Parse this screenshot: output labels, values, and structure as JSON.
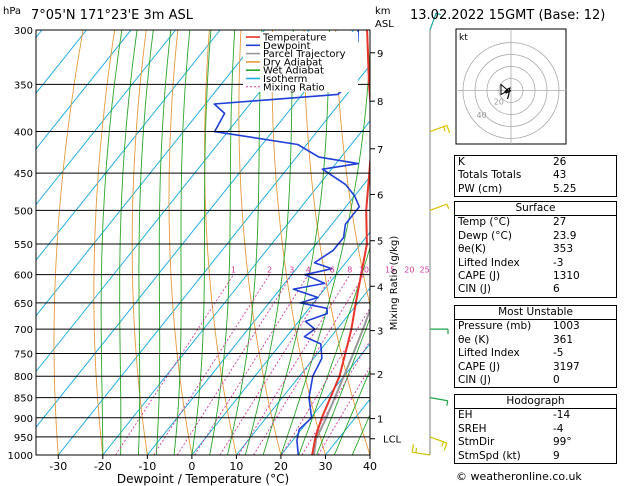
{
  "header": {
    "p_unit": "hPa",
    "location": "7°05'N  171°23'E  3m  ASL",
    "km_unit": "km",
    "asl_unit": "ASL",
    "datetime": "13.02.2022  15GMT  (Base: 12)"
  },
  "chart_data": {
    "type": "skew-t",
    "xlabel": "Dewpoint / Temperature (°C)",
    "ylabel_right": "Mixing Ratio (g/kg)",
    "pressure_ticks": [
      300,
      350,
      400,
      450,
      500,
      550,
      600,
      650,
      700,
      750,
      800,
      850,
      900,
      950,
      1000
    ],
    "temperature_ticks": [
      -30,
      -20,
      -10,
      0,
      10,
      20,
      30,
      40
    ],
    "xlim": [
      -35,
      40
    ],
    "ylim_hpa": [
      1000,
      300
    ],
    "skew": 0.8,
    "km_ticks": [
      {
        "label": "1",
        "p": 902
      },
      {
        "label": "2",
        "p": 795
      },
      {
        "label": "3",
        "p": 703
      },
      {
        "label": "4",
        "p": 620
      },
      {
        "label": "5",
        "p": 545
      },
      {
        "label": "6",
        "p": 478
      },
      {
        "label": "7",
        "p": 420
      },
      {
        "label": "8",
        "p": 367
      },
      {
        "label": "9",
        "p": 320
      }
    ],
    "lcl": {
      "label": "LCL",
      "p": 955
    },
    "mixing_ratio_labels": [
      "1",
      "2",
      "3",
      "4",
      "6",
      "8",
      "10",
      "15",
      "20",
      "25"
    ],
    "mixing_ratio_values": [
      1,
      2,
      3,
      4,
      6,
      8,
      10,
      15,
      20,
      25
    ],
    "legend": [
      {
        "name": "Temperature",
        "color": "#e8342a"
      },
      {
        "name": "Dewpoint",
        "color": "#1f3fd8"
      },
      {
        "name": "Parcel Trajectory",
        "color": "#999999"
      },
      {
        "name": "Dry Adiabat",
        "color": "#e59a3a"
      },
      {
        "name": "Wet Adiabat",
        "color": "#2aa52a"
      },
      {
        "name": "Isotherm",
        "color": "#24aee0"
      },
      {
        "name": "Mixing Ratio",
        "color": "#d23a9c"
      }
    ],
    "temperature": [
      {
        "p": 1000,
        "t": 27
      },
      {
        "p": 950,
        "t": 24.5
      },
      {
        "p": 900,
        "t": 22.5
      },
      {
        "p": 850,
        "t": 20.8
      },
      {
        "p": 800,
        "t": 19
      },
      {
        "p": 750,
        "t": 16.2
      },
      {
        "p": 700,
        "t": 13.2
      },
      {
        "p": 650,
        "t": 9.5
      },
      {
        "p": 600,
        "t": 5.6
      },
      {
        "p": 550,
        "t": 1.4
      },
      {
        "p": 500,
        "t": -4.8
      },
      {
        "p": 450,
        "t": -10.8
      },
      {
        "p": 400,
        "t": -17.5
      },
      {
        "p": 350,
        "t": -26.8
      },
      {
        "p": 300,
        "t": -37
      }
    ],
    "dewpoint": [
      {
        "p": 1000,
        "t": 23.9
      },
      {
        "p": 960,
        "t": 21
      },
      {
        "p": 930,
        "t": 19.5
      },
      {
        "p": 900,
        "t": 20.2
      },
      {
        "p": 850,
        "t": 16
      },
      {
        "p": 800,
        "t": 13
      },
      {
        "p": 760,
        "t": 11.8
      },
      {
        "p": 730,
        "t": 9
      },
      {
        "p": 715,
        "t": 4
      },
      {
        "p": 700,
        "t": 5
      },
      {
        "p": 685,
        "t": 1.5
      },
      {
        "p": 670,
        "t": 5
      },
      {
        "p": 660,
        "t": 4
      },
      {
        "p": 650,
        "t": -3
      },
      {
        "p": 640,
        "t": 0
      },
      {
        "p": 625,
        "t": -7
      },
      {
        "p": 615,
        "t": -1
      },
      {
        "p": 600,
        "t": -7
      },
      {
        "p": 590,
        "t": -2
      },
      {
        "p": 580,
        "t": -7
      },
      {
        "p": 560,
        "t": -5
      },
      {
        "p": 540,
        "t": -5
      },
      {
        "p": 520,
        "t": -7
      },
      {
        "p": 495,
        "t": -7
      },
      {
        "p": 480,
        "t": -10
      },
      {
        "p": 465,
        "t": -14
      },
      {
        "p": 445,
        "t": -22
      },
      {
        "p": 438,
        "t": -15
      },
      {
        "p": 430,
        "t": -25
      },
      {
        "p": 415,
        "t": -32
      },
      {
        "p": 400,
        "t": -53
      },
      {
        "p": 380,
        "t": -54
      },
      {
        "p": 370,
        "t": -58
      },
      {
        "p": 360,
        "t": -32
      },
      {
        "p": 345,
        "t": -31
      },
      {
        "p": 330,
        "t": -38
      },
      {
        "p": 310,
        "t": -37
      },
      {
        "p": 300,
        "t": -39
      }
    ],
    "parcel": [
      {
        "p": 1000,
        "t": 27.4
      },
      {
        "p": 955,
        "t": 25
      },
      {
        "p": 900,
        "t": 23.5
      },
      {
        "p": 850,
        "t": 21.8
      },
      {
        "p": 800,
        "t": 20
      },
      {
        "p": 750,
        "t": 18
      },
      {
        "p": 700,
        "t": 15.8
      },
      {
        "p": 650,
        "t": 13.3
      },
      {
        "p": 600,
        "t": 10.4
      },
      {
        "p": 550,
        "t": 7
      },
      {
        "p": 500,
        "t": 3
      },
      {
        "p": 450,
        "t": -1.8
      },
      {
        "p": 400,
        "t": -7.8
      },
      {
        "p": 370,
        "t": -11.5
      }
    ],
    "wind_barbs": [
      {
        "p": 300,
        "dir": 200,
        "spd": 5
      },
      {
        "p": 400,
        "dir": 250,
        "spd": 10
      },
      {
        "p": 500,
        "dir": 250,
        "spd": 5
      },
      {
        "p": 700,
        "dir": 270,
        "spd": 5
      },
      {
        "p": 850,
        "dir": 280,
        "spd": 5
      },
      {
        "p": 950,
        "dir": 290,
        "spd": 10
      },
      {
        "p": 1000,
        "dir": 99,
        "spd": 9
      }
    ]
  },
  "hodograph": {
    "unit_label": "kt",
    "ring_labels": [
      "20",
      "40"
    ],
    "points_kt": [
      [
        0,
        0
      ],
      [
        -2,
        -1
      ],
      [
        -4,
        -2
      ],
      [
        -5,
        -1
      ],
      [
        -3,
        1
      ],
      [
        -1,
        2
      ],
      [
        -2,
        -4
      ],
      [
        -3,
        -7
      ]
    ]
  },
  "indices": {
    "top": [
      {
        "k": "K",
        "v": "26"
      },
      {
        "k": "Totals Totals",
        "v": "43"
      },
      {
        "k": "PW (cm)",
        "v": "5.25"
      }
    ],
    "surface_title": "Surface",
    "surface": [
      {
        "k": "Temp (°C)",
        "v": "27"
      },
      {
        "k": "Dewp (°C)",
        "v": "23.9"
      },
      {
        "k": "θe(K)",
        "v": "353"
      },
      {
        "k": "Lifted Index",
        "v": "-3"
      },
      {
        "k": "CAPE (J)",
        "v": "1310"
      },
      {
        "k": "CIN (J)",
        "v": "6"
      }
    ],
    "mu_title": "Most Unstable",
    "mu": [
      {
        "k": "Pressure (mb)",
        "v": "1003"
      },
      {
        "k": "θe (K)",
        "v": "361"
      },
      {
        "k": "Lifted Index",
        "v": "-5"
      },
      {
        "k": "CAPE (J)",
        "v": "3197"
      },
      {
        "k": "CIN (J)",
        "v": "0"
      }
    ],
    "hodo_title": "Hodograph",
    "hodo": [
      {
        "k": "EH",
        "v": "-14"
      },
      {
        "k": "SREH",
        "v": "-4"
      },
      {
        "k": "StmDir",
        "v": "99°"
      },
      {
        "k": "StmSpd (kt)",
        "v": "9"
      }
    ]
  },
  "credit": "© weatheronline.co.uk"
}
